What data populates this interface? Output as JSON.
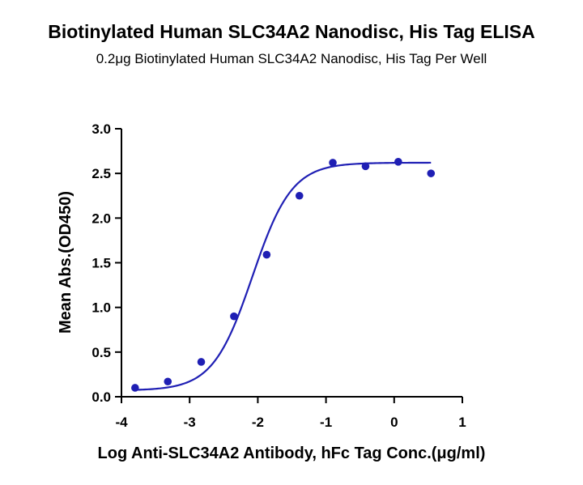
{
  "chart_data": {
    "type": "scatter",
    "title": "Biotinylated Human SLC34A2 Nanodisc, His Tag ELISA",
    "subtitle": "0.2μg Biotinylated Human SLC34A2 Nanodisc, His Tag Per Well",
    "xlabel": "Log Anti-SLC34A2 Antibody, hFc Tag Conc.(μg/ml)",
    "ylabel": "Mean Abs.(OD450)",
    "xlim": [
      -4,
      1
    ],
    "ylim": [
      0,
      3.0
    ],
    "xticks": [
      "-4",
      "-3",
      "-2",
      "-1",
      "0",
      "1"
    ],
    "yticks": [
      "0.0",
      "0.5",
      "1.0",
      "1.5",
      "2.0",
      "2.5",
      "3.0"
    ],
    "series": [
      {
        "points": [
          {
            "x": -3.8,
            "y": 0.1
          },
          {
            "x": -3.32,
            "y": 0.17
          },
          {
            "x": -2.83,
            "y": 0.39
          },
          {
            "x": -2.35,
            "y": 0.9
          },
          {
            "x": -1.87,
            "y": 1.59
          },
          {
            "x": -1.39,
            "y": 2.25
          },
          {
            "x": -0.9,
            "y": 2.62
          },
          {
            "x": -0.42,
            "y": 2.58
          },
          {
            "x": 0.06,
            "y": 2.63
          },
          {
            "x": 0.54,
            "y": 2.5
          }
        ],
        "fit": {
          "model": "4PL",
          "bottom": 0.07,
          "top": 2.62,
          "logEC50": -2.08,
          "hill": 1.5
        }
      }
    ],
    "color": "#1f1fb4",
    "grid": false
  }
}
